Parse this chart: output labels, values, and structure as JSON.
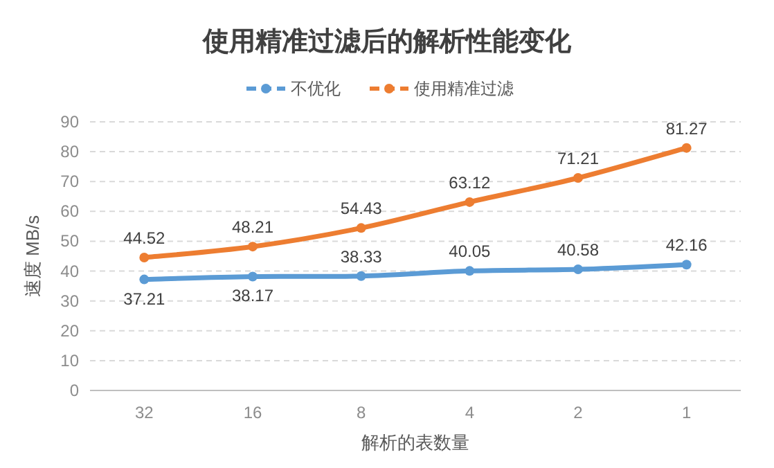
{
  "chart_data": {
    "type": "line",
    "title": "使用精准过滤后的解析性能变化",
    "xlabel": "解析的表数量",
    "ylabel": "速度 MB/s",
    "categories": [
      "32",
      "16",
      "8",
      "4",
      "2",
      "1"
    ],
    "series": [
      {
        "name": "不优化",
        "color": "#5b9bd5",
        "values": [
          37.21,
          38.17,
          38.33,
          40.05,
          40.58,
          42.16
        ]
      },
      {
        "name": "使用精准过滤",
        "color": "#ed7d31",
        "values": [
          44.52,
          48.21,
          54.43,
          63.12,
          71.21,
          81.27
        ]
      }
    ],
    "ylim": [
      0,
      90
    ],
    "yticks": [
      0,
      10,
      20,
      30,
      40,
      50,
      60,
      70,
      80,
      90
    ],
    "grid": "y",
    "legend": "top",
    "marker": "circle",
    "data_labels": true
  }
}
